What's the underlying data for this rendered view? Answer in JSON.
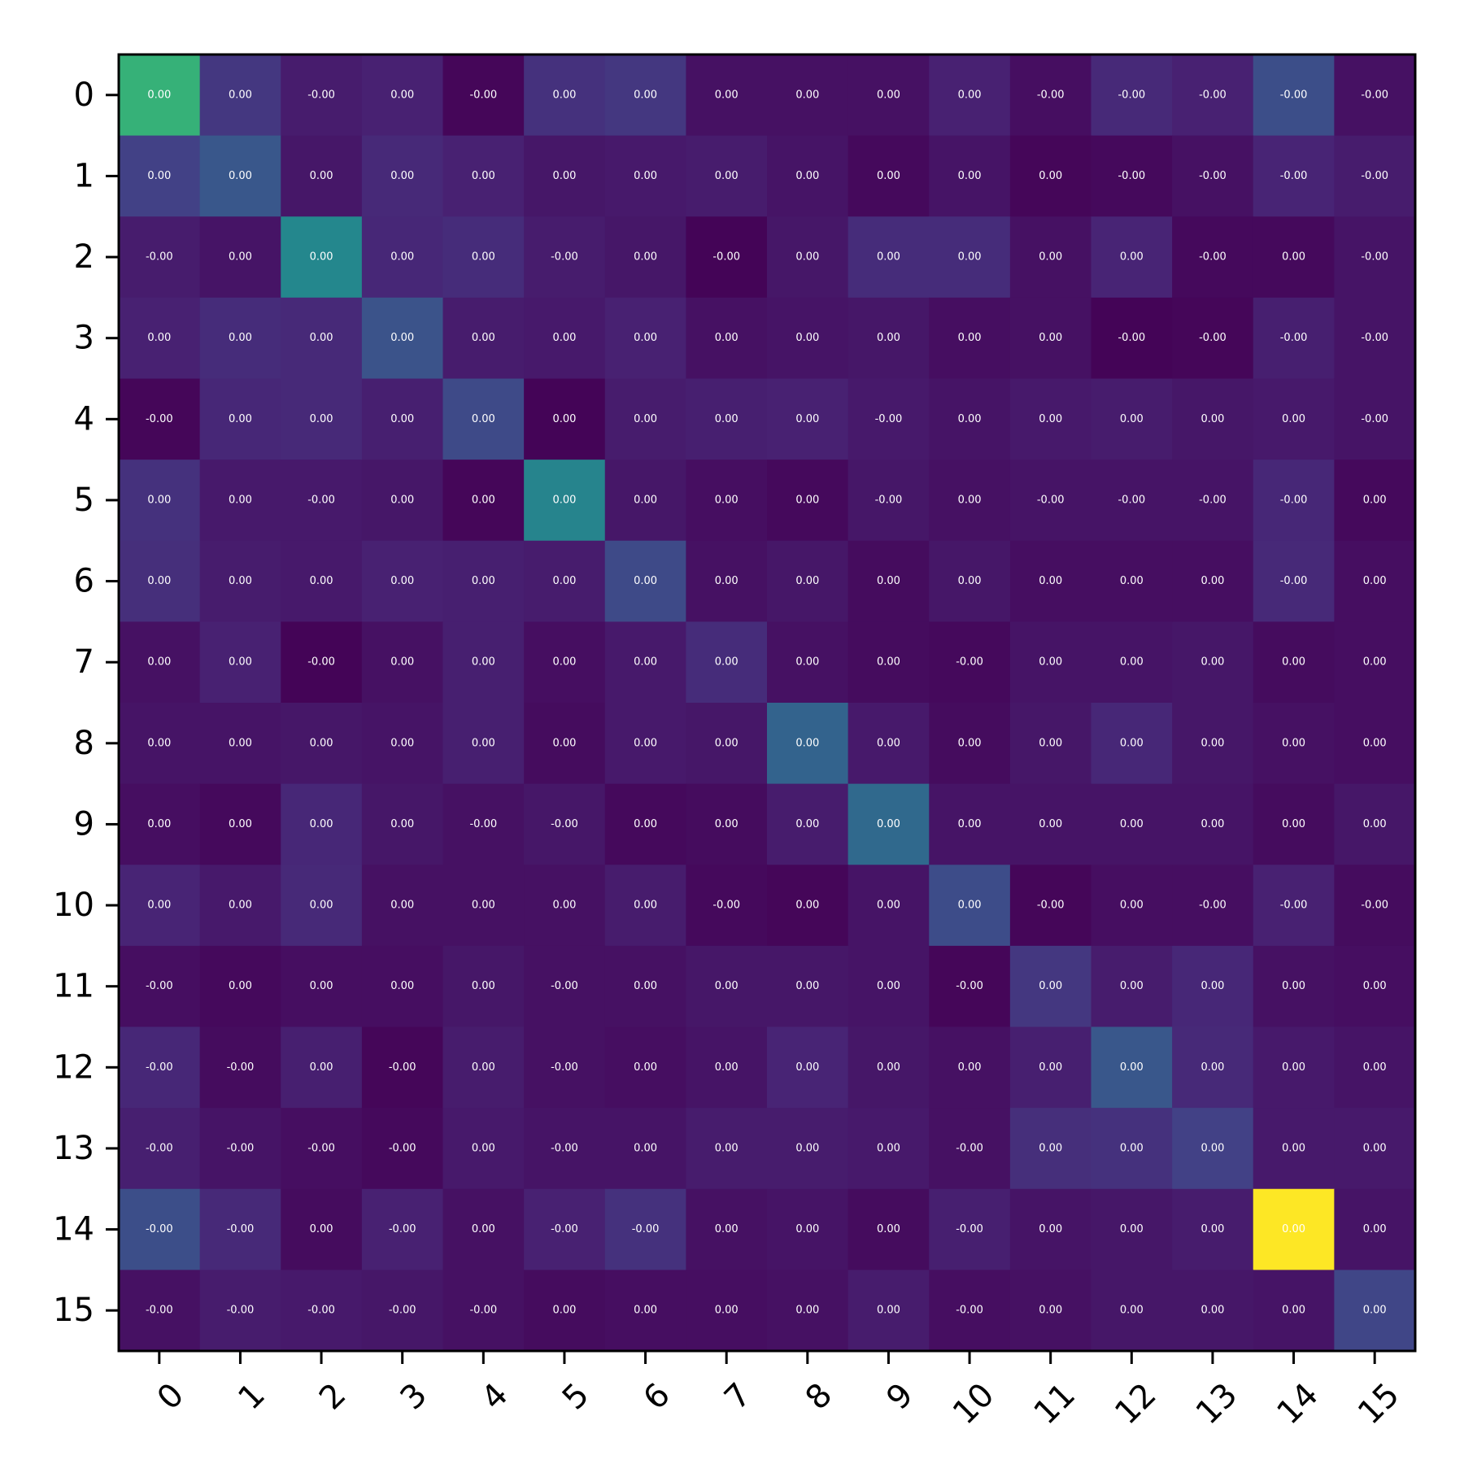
{
  "chart_data": {
    "type": "heatmap",
    "colormap": "viridis",
    "x_categories": [
      "0",
      "1",
      "2",
      "3",
      "4",
      "5",
      "6",
      "7",
      "8",
      "9",
      "10",
      "11",
      "12",
      "13",
      "14",
      "15"
    ],
    "y_categories": [
      "0",
      "1",
      "2",
      "3",
      "4",
      "5",
      "6",
      "7",
      "8",
      "9",
      "10",
      "11",
      "12",
      "13",
      "14",
      "15"
    ],
    "cell_text": [
      [
        "0.00",
        "0.00",
        "-0.00",
        "0.00",
        "-0.00",
        "0.00",
        "0.00",
        "0.00",
        "0.00",
        "0.00",
        "0.00",
        "-0.00",
        "-0.00",
        "-0.00",
        "-0.00",
        "-0.00"
      ],
      [
        "0.00",
        "0.00",
        "0.00",
        "0.00",
        "0.00",
        "0.00",
        "0.00",
        "0.00",
        "0.00",
        "0.00",
        "0.00",
        "0.00",
        "-0.00",
        "-0.00",
        "-0.00",
        "-0.00"
      ],
      [
        "-0.00",
        "0.00",
        "0.00",
        "0.00",
        "0.00",
        "-0.00",
        "0.00",
        "-0.00",
        "0.00",
        "0.00",
        "0.00",
        "0.00",
        "0.00",
        "-0.00",
        "0.00",
        "-0.00"
      ],
      [
        "0.00",
        "0.00",
        "0.00",
        "0.00",
        "0.00",
        "0.00",
        "0.00",
        "0.00",
        "0.00",
        "0.00",
        "0.00",
        "0.00",
        "-0.00",
        "-0.00",
        "-0.00",
        "-0.00"
      ],
      [
        "-0.00",
        "0.00",
        "0.00",
        "0.00",
        "0.00",
        "0.00",
        "0.00",
        "0.00",
        "0.00",
        "-0.00",
        "0.00",
        "0.00",
        "0.00",
        "0.00",
        "0.00",
        "-0.00"
      ],
      [
        "0.00",
        "0.00",
        "-0.00",
        "0.00",
        "0.00",
        "0.00",
        "0.00",
        "0.00",
        "0.00",
        "-0.00",
        "0.00",
        "-0.00",
        "-0.00",
        "-0.00",
        "-0.00",
        "0.00"
      ],
      [
        "0.00",
        "0.00",
        "0.00",
        "0.00",
        "0.00",
        "0.00",
        "0.00",
        "0.00",
        "0.00",
        "0.00",
        "0.00",
        "0.00",
        "0.00",
        "0.00",
        "-0.00",
        "0.00"
      ],
      [
        "0.00",
        "0.00",
        "-0.00",
        "0.00",
        "0.00",
        "0.00",
        "0.00",
        "0.00",
        "0.00",
        "0.00",
        "-0.00",
        "0.00",
        "0.00",
        "0.00",
        "0.00",
        "0.00"
      ],
      [
        "0.00",
        "0.00",
        "0.00",
        "0.00",
        "0.00",
        "0.00",
        "0.00",
        "0.00",
        "0.00",
        "0.00",
        "0.00",
        "0.00",
        "0.00",
        "0.00",
        "0.00",
        "0.00"
      ],
      [
        "0.00",
        "0.00",
        "0.00",
        "0.00",
        "-0.00",
        "-0.00",
        "0.00",
        "0.00",
        "0.00",
        "0.00",
        "0.00",
        "0.00",
        "0.00",
        "0.00",
        "0.00",
        "0.00"
      ],
      [
        "0.00",
        "0.00",
        "0.00",
        "0.00",
        "0.00",
        "0.00",
        "0.00",
        "-0.00",
        "0.00",
        "0.00",
        "0.00",
        "-0.00",
        "0.00",
        "-0.00",
        "-0.00",
        "-0.00"
      ],
      [
        "-0.00",
        "0.00",
        "0.00",
        "0.00",
        "0.00",
        "-0.00",
        "0.00",
        "0.00",
        "0.00",
        "0.00",
        "-0.00",
        "0.00",
        "0.00",
        "0.00",
        "0.00",
        "0.00"
      ],
      [
        "-0.00",
        "-0.00",
        "0.00",
        "-0.00",
        "0.00",
        "-0.00",
        "0.00",
        "0.00",
        "0.00",
        "0.00",
        "0.00",
        "0.00",
        "0.00",
        "0.00",
        "0.00",
        "0.00"
      ],
      [
        "-0.00",
        "-0.00",
        "-0.00",
        "-0.00",
        "0.00",
        "-0.00",
        "0.00",
        "0.00",
        "0.00",
        "0.00",
        "-0.00",
        "0.00",
        "0.00",
        "0.00",
        "0.00",
        "0.00"
      ],
      [
        "-0.00",
        "-0.00",
        "0.00",
        "-0.00",
        "0.00",
        "-0.00",
        "-0.00",
        "0.00",
        "0.00",
        "0.00",
        "-0.00",
        "0.00",
        "0.00",
        "0.00",
        "0.00",
        "0.00"
      ],
      [
        "-0.00",
        "-0.00",
        "-0.00",
        "-0.00",
        "-0.00",
        "0.00",
        "0.00",
        "0.00",
        "0.00",
        "0.00",
        "-0.00",
        "0.00",
        "0.00",
        "0.00",
        "0.00",
        "0.00"
      ]
    ],
    "intensity": [
      [
        0.78,
        0.2,
        0.1,
        0.12,
        0.02,
        0.18,
        0.2,
        0.06,
        0.06,
        0.06,
        0.12,
        0.05,
        0.15,
        0.12,
        0.3,
        0.06
      ],
      [
        0.24,
        0.34,
        0.08,
        0.15,
        0.12,
        0.08,
        0.09,
        0.1,
        0.07,
        0.03,
        0.07,
        0.02,
        0.03,
        0.06,
        0.13,
        0.1
      ],
      [
        0.1,
        0.07,
        0.58,
        0.14,
        0.16,
        0.1,
        0.08,
        0.01,
        0.08,
        0.16,
        0.16,
        0.06,
        0.13,
        0.03,
        0.03,
        0.07
      ],
      [
        0.12,
        0.16,
        0.15,
        0.32,
        0.1,
        0.09,
        0.12,
        0.06,
        0.07,
        0.08,
        0.05,
        0.06,
        0.01,
        0.02,
        0.11,
        0.07
      ],
      [
        0.02,
        0.14,
        0.15,
        0.11,
        0.28,
        0.01,
        0.1,
        0.11,
        0.12,
        0.09,
        0.07,
        0.09,
        0.1,
        0.08,
        0.09,
        0.07
      ],
      [
        0.18,
        0.09,
        0.09,
        0.08,
        0.02,
        0.56,
        0.08,
        0.05,
        0.03,
        0.08,
        0.06,
        0.07,
        0.07,
        0.07,
        0.14,
        0.03
      ],
      [
        0.17,
        0.1,
        0.09,
        0.12,
        0.11,
        0.1,
        0.28,
        0.06,
        0.08,
        0.04,
        0.08,
        0.05,
        0.05,
        0.05,
        0.15,
        0.05
      ],
      [
        0.06,
        0.12,
        0.01,
        0.06,
        0.11,
        0.05,
        0.09,
        0.16,
        0.06,
        0.04,
        0.03,
        0.07,
        0.07,
        0.08,
        0.04,
        0.05
      ],
      [
        0.07,
        0.07,
        0.08,
        0.07,
        0.11,
        0.04,
        0.09,
        0.08,
        0.4,
        0.09,
        0.04,
        0.08,
        0.14,
        0.08,
        0.06,
        0.05
      ],
      [
        0.05,
        0.03,
        0.14,
        0.08,
        0.06,
        0.08,
        0.03,
        0.04,
        0.1,
        0.43,
        0.07,
        0.07,
        0.07,
        0.07,
        0.04,
        0.08
      ],
      [
        0.13,
        0.09,
        0.15,
        0.06,
        0.06,
        0.06,
        0.1,
        0.03,
        0.02,
        0.07,
        0.29,
        0.02,
        0.05,
        0.05,
        0.12,
        0.04
      ],
      [
        0.05,
        0.03,
        0.05,
        0.05,
        0.08,
        0.06,
        0.06,
        0.08,
        0.08,
        0.07,
        0.02,
        0.2,
        0.1,
        0.14,
        0.06,
        0.05
      ],
      [
        0.14,
        0.04,
        0.11,
        0.02,
        0.1,
        0.06,
        0.05,
        0.07,
        0.13,
        0.08,
        0.06,
        0.11,
        0.34,
        0.15,
        0.09,
        0.07
      ],
      [
        0.11,
        0.07,
        0.05,
        0.03,
        0.09,
        0.07,
        0.07,
        0.1,
        0.1,
        0.09,
        0.06,
        0.17,
        0.18,
        0.24,
        0.09,
        0.09
      ],
      [
        0.3,
        0.15,
        0.04,
        0.12,
        0.06,
        0.12,
        0.18,
        0.06,
        0.07,
        0.04,
        0.11,
        0.07,
        0.08,
        0.1,
        1.0,
        0.07
      ],
      [
        0.06,
        0.1,
        0.09,
        0.08,
        0.06,
        0.04,
        0.05,
        0.05,
        0.06,
        0.1,
        0.05,
        0.06,
        0.08,
        0.08,
        0.07,
        0.26
      ]
    ],
    "title": "",
    "xlabel": "",
    "ylabel": ""
  }
}
